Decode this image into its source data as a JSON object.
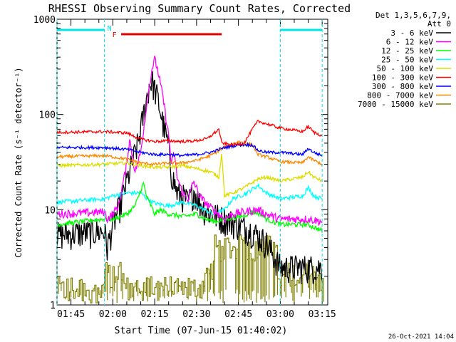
{
  "chart_data": {
    "type": "line",
    "title": "RHESSI Observing Summary Count Rates, Corrected",
    "xlabel": "Start Time (07-Jun-15 01:40:02)",
    "ylabel": "Corrected Count Rate (s⁻¹ detector⁻¹)",
    "yscale": "log",
    "ylim": [
      1,
      1000
    ],
    "yticks": [
      {
        "v": 1,
        "label": "1"
      },
      {
        "v": 10,
        "label": "10"
      },
      {
        "v": 100,
        "label": "100"
      },
      {
        "v": 1000,
        "label": "1000"
      }
    ],
    "xlim": [
      "01:40",
      "03:17"
    ],
    "xticks": [
      "01:45",
      "02:00",
      "02:15",
      "02:30",
      "02:45",
      "03:00",
      "03:15"
    ],
    "legend_header": [
      "Det 1,3,5,6,7,9,",
      "Att 0"
    ],
    "legend_position": "right",
    "annotations": {
      "night_label": "N",
      "flare_label": "F",
      "night_color": "#00e5e5",
      "flare_color": "#e00000",
      "night_intervals": [
        [
          "01:40",
          "01:57"
        ],
        [
          "03:00",
          "03:15"
        ]
      ],
      "flare_interval": [
        "02:03",
        "02:39"
      ]
    },
    "footer_date": "26-Oct-2021 14:04",
    "series": [
      {
        "name": "3 - 6 keV",
        "color": "#000000",
        "noise": 0.35,
        "points": [
          [
            "01:40",
            5.5
          ],
          [
            "01:57",
            6
          ],
          [
            "01:58",
            4
          ],
          [
            "02:00",
            7
          ],
          [
            "02:03",
            12
          ],
          [
            "02:06",
            25
          ],
          [
            "02:09",
            50
          ],
          [
            "02:11",
            100
          ],
          [
            "02:13",
            200
          ],
          [
            "02:14",
            230
          ],
          [
            "02:16",
            150
          ],
          [
            "02:18",
            80
          ],
          [
            "02:20",
            45
          ],
          [
            "02:21",
            25
          ],
          [
            "02:23",
            15
          ],
          [
            "02:25",
            14
          ],
          [
            "02:27",
            12
          ],
          [
            "02:29",
            16
          ],
          [
            "02:31",
            12
          ],
          [
            "02:33",
            10
          ],
          [
            "02:36",
            9
          ],
          [
            "02:40",
            8
          ],
          [
            "02:45",
            7
          ],
          [
            "02:50",
            6
          ],
          [
            "02:55",
            4.5
          ],
          [
            "03:00",
            2.5
          ],
          [
            "03:10",
            2.5
          ],
          [
            "03:15",
            2.5
          ]
        ]
      },
      {
        "name": "6 - 12 keV",
        "color": "#ff00ff",
        "noise": 0.1,
        "points": [
          [
            "01:40",
            9
          ],
          [
            "01:57",
            9.5
          ],
          [
            "01:58",
            8
          ],
          [
            "02:00",
            9
          ],
          [
            "02:02",
            11
          ],
          [
            "02:05",
            30
          ],
          [
            "02:06",
            55
          ],
          [
            "02:08",
            25
          ],
          [
            "02:10",
            40
          ],
          [
            "02:12",
            120
          ],
          [
            "02:14",
            300
          ],
          [
            "02:15",
            380
          ],
          [
            "02:16",
            300
          ],
          [
            "02:18",
            150
          ],
          [
            "02:20",
            60
          ],
          [
            "02:21",
            30
          ],
          [
            "02:22",
            40
          ],
          [
            "02:23",
            22
          ],
          [
            "02:25",
            15
          ],
          [
            "02:27",
            13
          ],
          [
            "02:29",
            20
          ],
          [
            "02:31",
            14
          ],
          [
            "02:33",
            12
          ],
          [
            "02:36",
            10
          ],
          [
            "02:40",
            8
          ],
          [
            "02:43",
            9
          ],
          [
            "02:47",
            9.5
          ],
          [
            "02:52",
            10
          ],
          [
            "02:55",
            9
          ],
          [
            "03:00",
            8
          ],
          [
            "03:10",
            8
          ],
          [
            "03:15",
            7.5
          ]
        ]
      },
      {
        "name": "12 - 25 keV",
        "color": "#00ff00",
        "noise": 0.06,
        "points": [
          [
            "01:40",
            7
          ],
          [
            "01:57",
            8
          ],
          [
            "02:00",
            8
          ],
          [
            "02:05",
            9
          ],
          [
            "02:08",
            11
          ],
          [
            "02:10",
            16
          ],
          [
            "02:11",
            19
          ],
          [
            "02:12",
            14
          ],
          [
            "02:15",
            9
          ],
          [
            "02:17",
            10
          ],
          [
            "02:20",
            9
          ],
          [
            "02:25",
            8.5
          ],
          [
            "02:30",
            9
          ],
          [
            "02:33",
            8
          ],
          [
            "02:37",
            7.5
          ],
          [
            "02:40",
            8
          ],
          [
            "02:46",
            8.5
          ],
          [
            "02:50",
            9.5
          ],
          [
            "02:53",
            9
          ],
          [
            "02:55",
            8
          ],
          [
            "03:00",
            7
          ],
          [
            "03:10",
            7
          ],
          [
            "03:15",
            6
          ]
        ]
      },
      {
        "name": "25 - 50 keV",
        "color": "#00ffff",
        "noise": 0.05,
        "points": [
          [
            "01:40",
            12
          ],
          [
            "01:57",
            13
          ],
          [
            "02:00",
            14
          ],
          [
            "02:05",
            15
          ],
          [
            "02:10",
            15
          ],
          [
            "02:13",
            12.5
          ],
          [
            "02:16",
            11.5
          ],
          [
            "02:20",
            11
          ],
          [
            "02:25",
            12
          ],
          [
            "02:30",
            11
          ],
          [
            "02:33",
            10
          ],
          [
            "02:36",
            9
          ],
          [
            "02:40",
            10
          ],
          [
            "02:43",
            13
          ],
          [
            "02:48",
            15
          ],
          [
            "02:52",
            18
          ],
          [
            "02:55",
            15
          ],
          [
            "03:00",
            13
          ],
          [
            "03:08",
            14
          ],
          [
            "03:10",
            17
          ],
          [
            "03:12",
            14
          ],
          [
            "03:15",
            13
          ]
        ]
      },
      {
        "name": "50 - 100 keV",
        "color": "#dddd00",
        "noise": 0.04,
        "points": [
          [
            "01:40",
            29
          ],
          [
            "01:57",
            30
          ],
          [
            "02:05",
            31
          ],
          [
            "02:10",
            29
          ],
          [
            "02:15",
            28
          ],
          [
            "02:20",
            28
          ],
          [
            "02:25",
            29
          ],
          [
            "02:30",
            27
          ],
          [
            "02:35",
            25
          ],
          [
            "02:38",
            22
          ],
          [
            "02:39",
            40
          ],
          [
            "02:40",
            14
          ],
          [
            "02:43",
            15
          ],
          [
            "02:47",
            17
          ],
          [
            "02:52",
            21
          ],
          [
            "02:55",
            22
          ],
          [
            "03:00",
            20
          ],
          [
            "03:08",
            22
          ],
          [
            "03:10",
            25
          ],
          [
            "03:12",
            22
          ],
          [
            "03:15",
            20
          ]
        ]
      },
      {
        "name": "100 - 300 keV",
        "color": "#ff0000",
        "noise": 0.035,
        "points": [
          [
            "01:40",
            65
          ],
          [
            "01:57",
            66
          ],
          [
            "02:05",
            64
          ],
          [
            "02:10",
            55
          ],
          [
            "02:15",
            52
          ],
          [
            "02:20",
            53
          ],
          [
            "02:25",
            52
          ],
          [
            "02:30",
            53
          ],
          [
            "02:34",
            56
          ],
          [
            "02:38",
            70
          ],
          [
            "02:39",
            50
          ],
          [
            "02:43",
            48
          ],
          [
            "02:47",
            50
          ],
          [
            "02:50",
            70
          ],
          [
            "02:52",
            85
          ],
          [
            "02:55",
            80
          ],
          [
            "03:00",
            72
          ],
          [
            "03:08",
            66
          ],
          [
            "03:10",
            75
          ],
          [
            "03:12",
            65
          ],
          [
            "03:15",
            60
          ]
        ]
      },
      {
        "name": "300 - 800 keV",
        "color": "#0000ff",
        "noise": 0.035,
        "points": [
          [
            "01:40",
            45
          ],
          [
            "01:57",
            45
          ],
          [
            "02:05",
            43
          ],
          [
            "02:10",
            40
          ],
          [
            "02:15",
            38
          ],
          [
            "02:20",
            38
          ],
          [
            "02:25",
            37
          ],
          [
            "02:30",
            38
          ],
          [
            "02:35",
            40
          ],
          [
            "02:40",
            45
          ],
          [
            "02:45",
            48
          ],
          [
            "02:50",
            48
          ],
          [
            "02:52",
            42
          ],
          [
            "02:55",
            40
          ],
          [
            "03:00",
            40
          ],
          [
            "03:08",
            38
          ],
          [
            "03:10",
            44
          ],
          [
            "03:12",
            40
          ],
          [
            "03:15",
            37
          ]
        ]
      },
      {
        "name": "800 - 7000 keV",
        "color": "#ff8800",
        "noise": 0.035,
        "points": [
          [
            "01:40",
            36
          ],
          [
            "01:57",
            37
          ],
          [
            "02:05",
            34
          ],
          [
            "02:10",
            31
          ],
          [
            "02:15",
            30
          ],
          [
            "02:20",
            31
          ],
          [
            "02:25",
            31
          ],
          [
            "02:30",
            33
          ],
          [
            "02:35",
            37
          ],
          [
            "02:40",
            45
          ],
          [
            "02:45",
            52
          ],
          [
            "02:50",
            48
          ],
          [
            "02:52",
            38
          ],
          [
            "02:55",
            36
          ],
          [
            "03:00",
            32
          ],
          [
            "03:08",
            31
          ],
          [
            "03:10",
            36
          ],
          [
            "03:12",
            33
          ],
          [
            "03:15",
            30
          ]
        ]
      },
      {
        "name": "7000 - 15000 keV",
        "color": "#808000",
        "noise": 0,
        "points": []
      }
    ]
  }
}
